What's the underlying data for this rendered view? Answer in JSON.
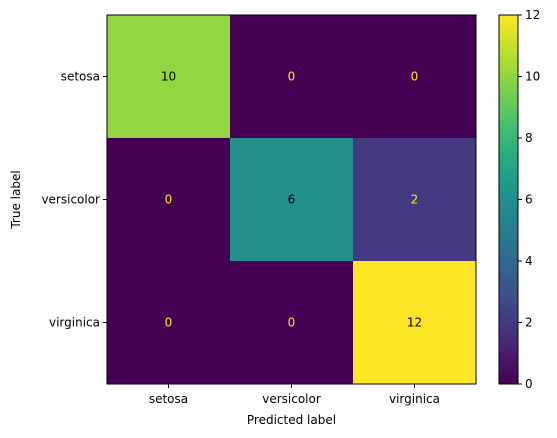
{
  "chart_data": {
    "type": "heatmap",
    "title": "",
    "xlabel": "Predicted label",
    "ylabel": "True label",
    "x_categories": [
      "setosa",
      "versicolor",
      "virginica"
    ],
    "y_categories": [
      "setosa",
      "versicolor",
      "virginica"
    ],
    "values": [
      [
        10,
        0,
        0
      ],
      [
        0,
        6,
        2
      ],
      [
        0,
        0,
        12
      ]
    ],
    "colorbar": {
      "colormap": "viridis",
      "range": [
        0,
        12
      ],
      "ticks": [
        0,
        2,
        4,
        6,
        8,
        10,
        12
      ]
    },
    "annotation_colors": {
      "dark_cell_text": "#fde725",
      "light_cell_text": "#000000"
    },
    "grid": false
  }
}
